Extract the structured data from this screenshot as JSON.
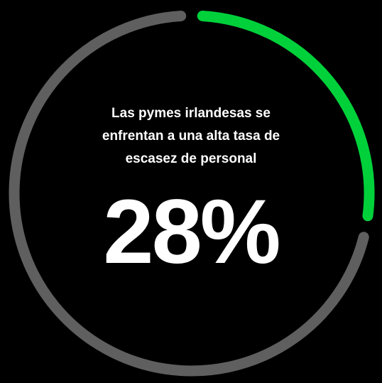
{
  "chart_data": {
    "type": "donut",
    "title": "Las pymes irlandesas se enfrentan a una alta tasa de escasez de personal",
    "categories": [
      null,
      null
    ],
    "values": [
      28,
      72
    ],
    "value_labels": [
      "28%",
      null
    ],
    "colors": [
      "#00d13b",
      "#5f5f5f"
    ]
  }
}
